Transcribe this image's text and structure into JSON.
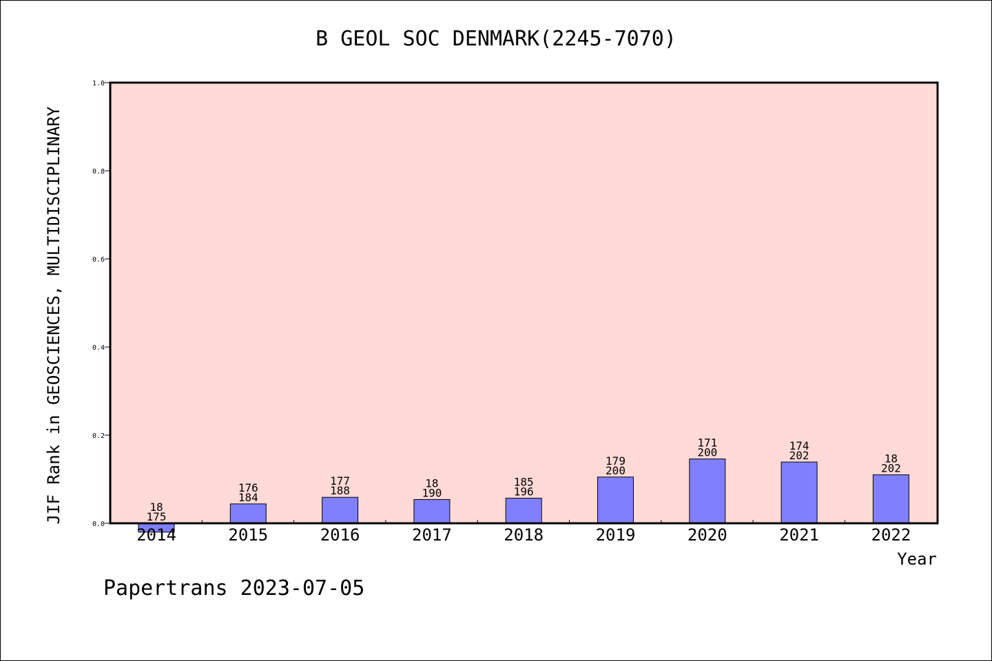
{
  "chart_data": {
    "type": "bar",
    "title": "B GEOL SOC DENMARK(2245-7070)",
    "xlabel": "Year",
    "ylabel": "JIF Rank in GEOSCIENCES, MULTIDISCIPLINARY",
    "ylim": [
      0,
      1.0
    ],
    "yticks": [
      "0.0",
      "0.2",
      "0.4",
      "0.6",
      "0.8",
      "1.0"
    ],
    "categories": [
      "2014",
      "2015",
      "2016",
      "2017",
      "2018",
      "2019",
      "2020",
      "2021",
      "2022"
    ],
    "values": [
      -0.02,
      0.044,
      0.059,
      0.054,
      0.057,
      0.105,
      0.146,
      0.139,
      0.11
    ],
    "label_top": [
      "18",
      "176",
      "177",
      "18",
      "185",
      "179",
      "171",
      "174",
      "18"
    ],
    "label_bottom": [
      "175",
      "184",
      "188",
      "190",
      "196",
      "200",
      "200",
      "202",
      "202"
    ],
    "grid": false,
    "colors": {
      "plot_bg": "#ffdad6",
      "bar": "#8080ff",
      "bar_edge": "#000000"
    }
  },
  "footer": {
    "credit": "Papertrans 2023-07-05"
  }
}
